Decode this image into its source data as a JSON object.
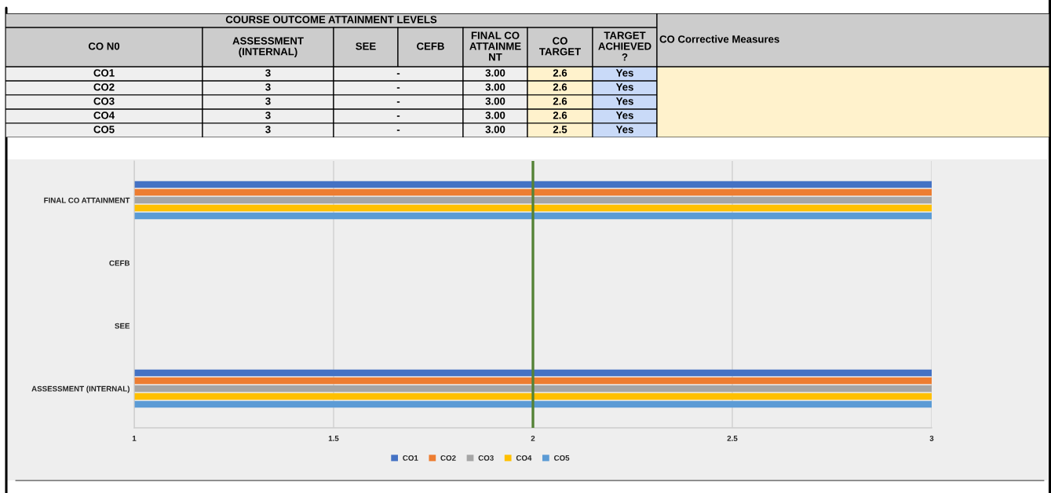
{
  "chart_data": [
    {
      "type": "other",
      "title": "COURSE OUTCOME ATTAINMENT LEVELS",
      "ylabel": "CO N0",
      "categories": [
        "ASSESSMENT (INTERNAL)",
        "SEE",
        "CEFB",
        "FINAL CO ATTAINMENT",
        "CO TARGET",
        "TARGET ACHIEVED ?",
        "CO Corrective Measures"
      ],
      "y_categories": [
        "CO1",
        "CO2",
        "CO3",
        "CO4",
        "CO5"
      ],
      "cell_labels": [
        [
          "3",
          "-",
          null,
          "3.00",
          "2.6",
          "Yes",
          null
        ],
        [
          "3",
          "-",
          null,
          "3.00",
          "2.6",
          "Yes",
          null
        ],
        [
          "3",
          "-",
          null,
          "3.00",
          "2.6",
          "Yes",
          null
        ],
        [
          "3",
          "-",
          null,
          "3.00",
          "2.6",
          "Yes",
          null
        ],
        [
          "3",
          "-",
          null,
          "3.00",
          "2.5",
          "Yes",
          null
        ]
      ],
      "color": "#cccccc",
      "colors": [
        [
          "#efefef",
          "#efefef",
          "#efefef",
          "#efefef",
          "#fff2cc",
          "#c9daf8",
          "#fff2cc"
        ],
        [
          "#efefef",
          "#efefef",
          "#efefef",
          "#efefef",
          "#fff2cc",
          "#c9daf8",
          "#fff2cc"
        ],
        [
          "#efefef",
          "#efefef",
          "#efefef",
          "#efefef",
          "#fff2cc",
          "#c9daf8",
          "#fff2cc"
        ],
        [
          "#efefef",
          "#efefef",
          "#efefef",
          "#efefef",
          "#fff2cc",
          "#c9daf8",
          "#fff2cc"
        ],
        [
          "#efefef",
          "#efefef",
          "#efefef",
          "#efefef",
          "#fff2cc",
          "#c9daf8",
          "#fff2cc"
        ]
      ]
    },
    {
      "type": "bar",
      "orientation": "horizontal",
      "categories": [
        "FINAL CO ATTAINMENT",
        "CEFB",
        "SEE",
        "ASSESSMENT (INTERNAL)"
      ],
      "series": [
        {
          "name": "CO1",
          "color": "#4472c4",
          "values": [
            3,
            null,
            null,
            3
          ]
        },
        {
          "name": "CO2",
          "color": "#ed7d31",
          "values": [
            3,
            null,
            null,
            3
          ]
        },
        {
          "name": "CO3",
          "color": "#a5a5a5",
          "values": [
            3,
            null,
            null,
            3
          ]
        },
        {
          "name": "CO4",
          "color": "#ffc000",
          "values": [
            3,
            null,
            null,
            3
          ]
        },
        {
          "name": "CO5",
          "color": "#5b9bd5",
          "values": [
            3,
            null,
            null,
            3
          ]
        }
      ],
      "xlim": [
        1,
        3
      ],
      "xticks": [
        1,
        1.5,
        2,
        2.5,
        3
      ],
      "grid": "x",
      "legend": "bottom",
      "ref_lines": [
        {
          "axis": "x",
          "value": 2,
          "color": "#548235"
        }
      ]
    }
  ]
}
